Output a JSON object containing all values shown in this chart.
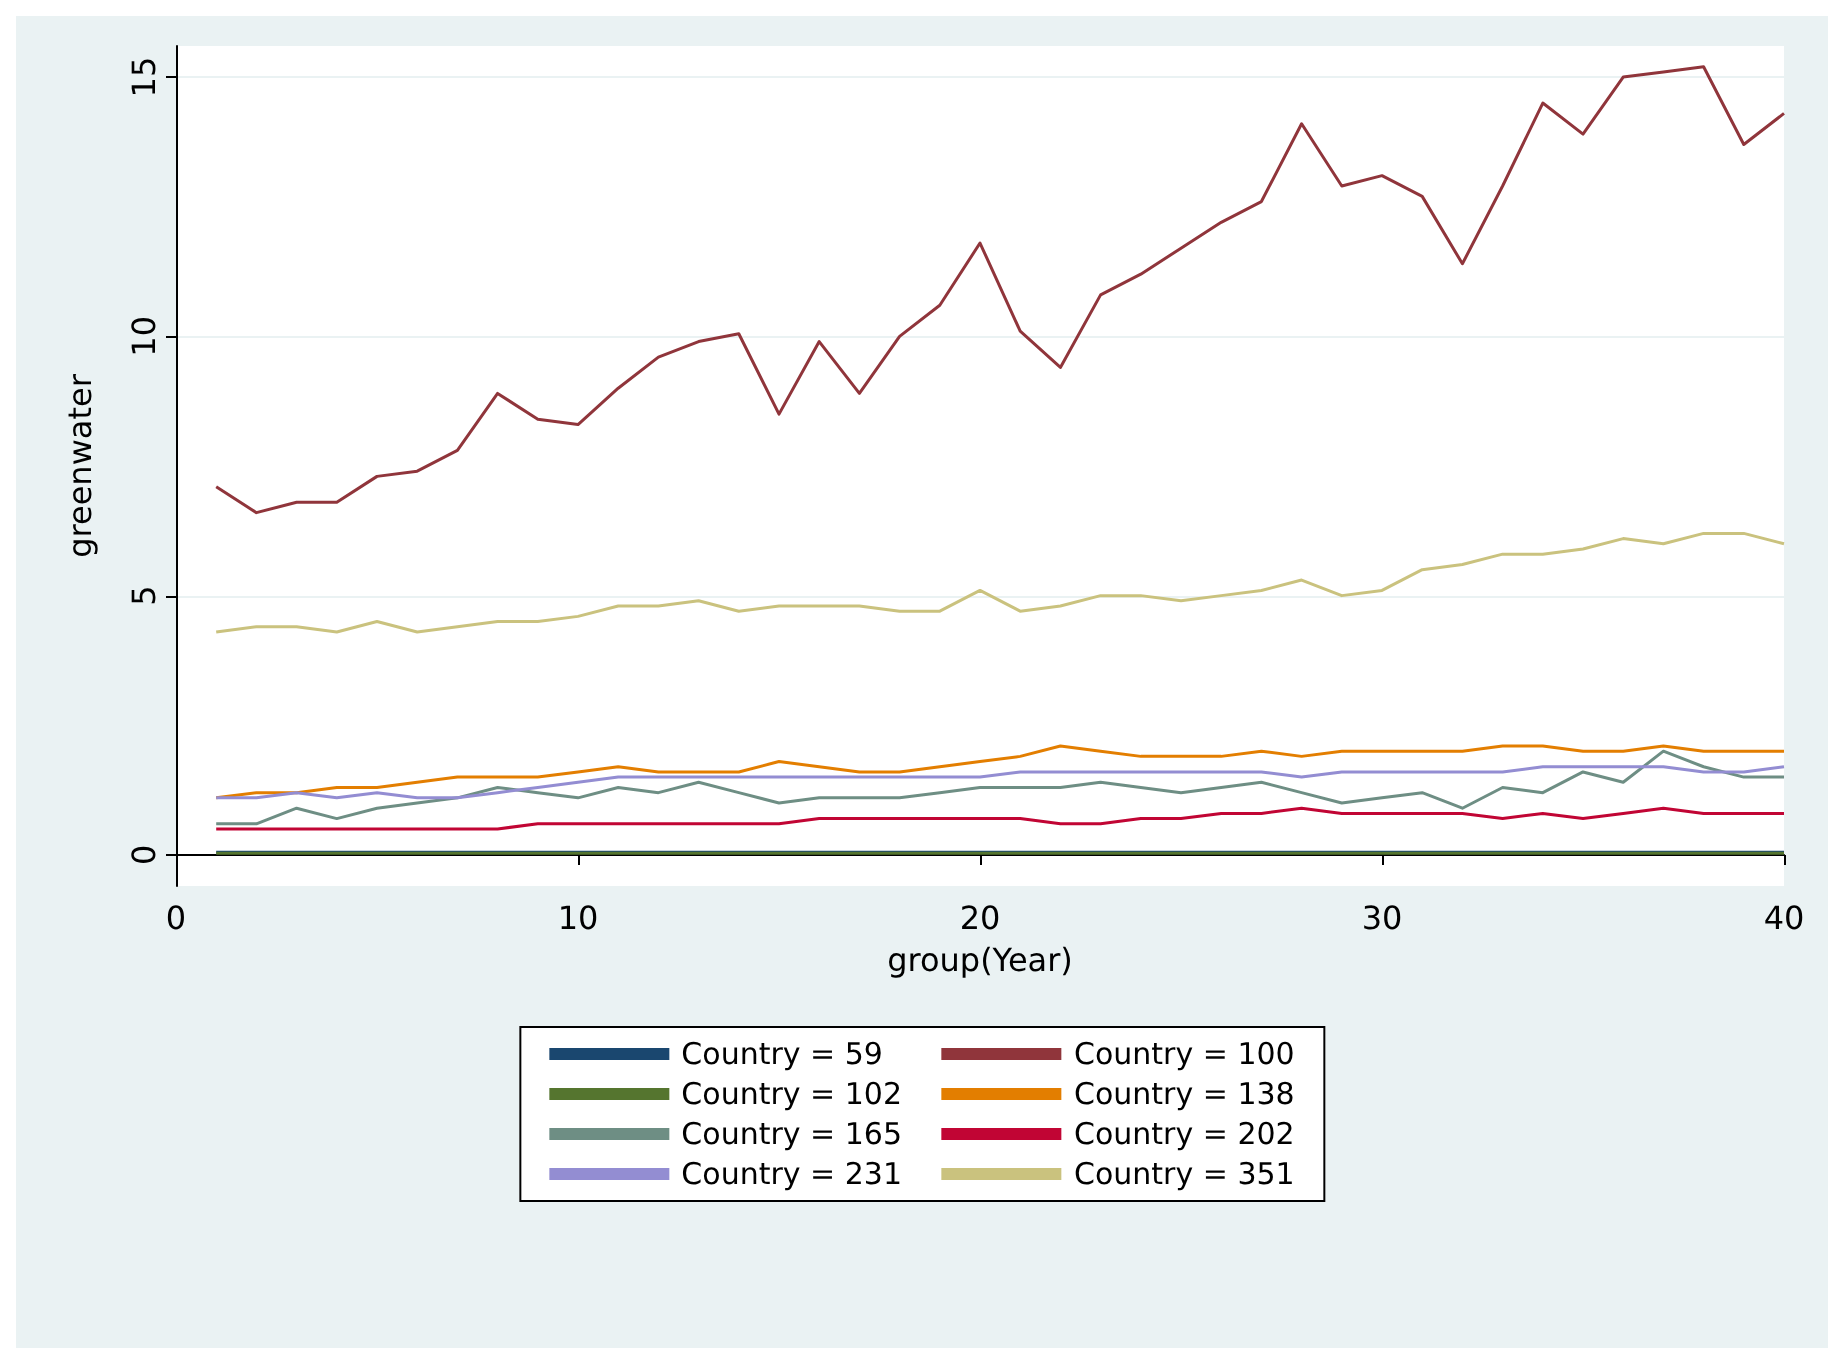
{
  "chart_data": {
    "type": "line",
    "xlabel": "group(Year)",
    "ylabel": "greenwater",
    "x": [
      1,
      2,
      3,
      4,
      5,
      6,
      7,
      8,
      9,
      10,
      11,
      12,
      13,
      14,
      15,
      16,
      17,
      18,
      19,
      20,
      21,
      22,
      23,
      24,
      25,
      26,
      27,
      28,
      29,
      30,
      31,
      32,
      33,
      34,
      35,
      36,
      37,
      38,
      39,
      40
    ],
    "xlim": [
      0,
      40
    ],
    "xticks": [
      0,
      10,
      20,
      30,
      40
    ],
    "ylim": [
      -0.6,
      15.6
    ],
    "yticks": [
      0,
      5,
      10,
      15
    ],
    "grid": "y",
    "legend": "bottom",
    "series": [
      {
        "name": "Country = 59",
        "color": "#1a476f",
        "values": [
          0.05,
          0.05,
          0.05,
          0.05,
          0.05,
          0.05,
          0.05,
          0.05,
          0.05,
          0.05,
          0.05,
          0.05,
          0.05,
          0.05,
          0.05,
          0.05,
          0.05,
          0.05,
          0.05,
          0.05,
          0.05,
          0.05,
          0.05,
          0.05,
          0.05,
          0.05,
          0.05,
          0.05,
          0.05,
          0.05,
          0.05,
          0.05,
          0.05,
          0.05,
          0.05,
          0.05,
          0.05,
          0.05,
          0.05,
          0.05
        ]
      },
      {
        "name": "Country = 100",
        "color": "#90353b",
        "values": [
          7.1,
          6.6,
          6.8,
          6.8,
          7.3,
          7.4,
          7.8,
          8.9,
          8.4,
          8.3,
          9.0,
          9.6,
          9.9,
          10.05,
          8.5,
          9.9,
          8.9,
          10.0,
          10.6,
          11.8,
          10.1,
          9.4,
          10.8,
          11.2,
          11.7,
          12.2,
          12.6,
          14.1,
          12.9,
          13.1,
          12.7,
          11.4,
          12.9,
          14.5,
          13.9,
          15.0,
          15.1,
          15.2,
          13.7,
          14.3
        ]
      },
      {
        "name": "Country = 102",
        "color": "#55752f",
        "values": [
          0.03,
          0.03,
          0.03,
          0.03,
          0.03,
          0.03,
          0.03,
          0.03,
          0.03,
          0.03,
          0.03,
          0.03,
          0.03,
          0.03,
          0.03,
          0.03,
          0.03,
          0.03,
          0.03,
          0.03,
          0.03,
          0.03,
          0.03,
          0.03,
          0.03,
          0.03,
          0.03,
          0.03,
          0.03,
          0.03,
          0.03,
          0.03,
          0.03,
          0.03,
          0.03,
          0.03,
          0.03,
          0.03,
          0.03,
          0.03
        ]
      },
      {
        "name": "Country = 138",
        "color": "#e37e00",
        "values": [
          1.1,
          1.2,
          1.2,
          1.3,
          1.3,
          1.4,
          1.5,
          1.5,
          1.5,
          1.6,
          1.7,
          1.6,
          1.6,
          1.6,
          1.8,
          1.7,
          1.6,
          1.6,
          1.7,
          1.8,
          1.9,
          2.1,
          2.0,
          1.9,
          1.9,
          1.9,
          2.0,
          1.9,
          2.0,
          2.0,
          2.0,
          2.0,
          2.1,
          2.1,
          2.0,
          2.0,
          2.1,
          2.0,
          2.0,
          2.0
        ]
      },
      {
        "name": "Country = 165",
        "color": "#6e8e84",
        "values": [
          0.6,
          0.6,
          0.9,
          0.7,
          0.9,
          1.0,
          1.1,
          1.3,
          1.2,
          1.1,
          1.3,
          1.2,
          1.4,
          1.2,
          1.0,
          1.1,
          1.1,
          1.1,
          1.2,
          1.3,
          1.3,
          1.3,
          1.4,
          1.3,
          1.2,
          1.3,
          1.4,
          1.2,
          1.0,
          1.1,
          1.2,
          0.9,
          1.3,
          1.2,
          1.6,
          1.4,
          2.0,
          1.7,
          1.5,
          1.5
        ]
      },
      {
        "name": "Country = 202",
        "color": "#c10534",
        "values": [
          0.5,
          0.5,
          0.5,
          0.5,
          0.5,
          0.5,
          0.5,
          0.5,
          0.6,
          0.6,
          0.6,
          0.6,
          0.6,
          0.6,
          0.6,
          0.7,
          0.7,
          0.7,
          0.7,
          0.7,
          0.7,
          0.6,
          0.6,
          0.7,
          0.7,
          0.8,
          0.8,
          0.9,
          0.8,
          0.8,
          0.8,
          0.8,
          0.7,
          0.8,
          0.7,
          0.8,
          0.9,
          0.8,
          0.8,
          0.8
        ]
      },
      {
        "name": "Country = 231",
        "color": "#938dd2",
        "values": [
          1.1,
          1.1,
          1.2,
          1.1,
          1.2,
          1.1,
          1.1,
          1.2,
          1.3,
          1.4,
          1.5,
          1.5,
          1.5,
          1.5,
          1.5,
          1.5,
          1.5,
          1.5,
          1.5,
          1.5,
          1.6,
          1.6,
          1.6,
          1.6,
          1.6,
          1.6,
          1.6,
          1.5,
          1.6,
          1.6,
          1.6,
          1.6,
          1.6,
          1.7,
          1.7,
          1.7,
          1.7,
          1.6,
          1.6,
          1.7
        ]
      },
      {
        "name": "Country = 351",
        "color": "#cac27e",
        "values": [
          4.3,
          4.4,
          4.4,
          4.3,
          4.5,
          4.3,
          4.4,
          4.5,
          4.5,
          4.6,
          4.8,
          4.8,
          4.9,
          4.7,
          4.8,
          4.8,
          4.8,
          4.7,
          4.7,
          5.1,
          4.7,
          4.8,
          5.0,
          5.0,
          4.9,
          5.0,
          5.1,
          5.3,
          5.0,
          5.1,
          5.5,
          5.6,
          5.8,
          5.8,
          5.9,
          6.1,
          6.0,
          6.2,
          6.2,
          6.0
        ]
      }
    ]
  }
}
